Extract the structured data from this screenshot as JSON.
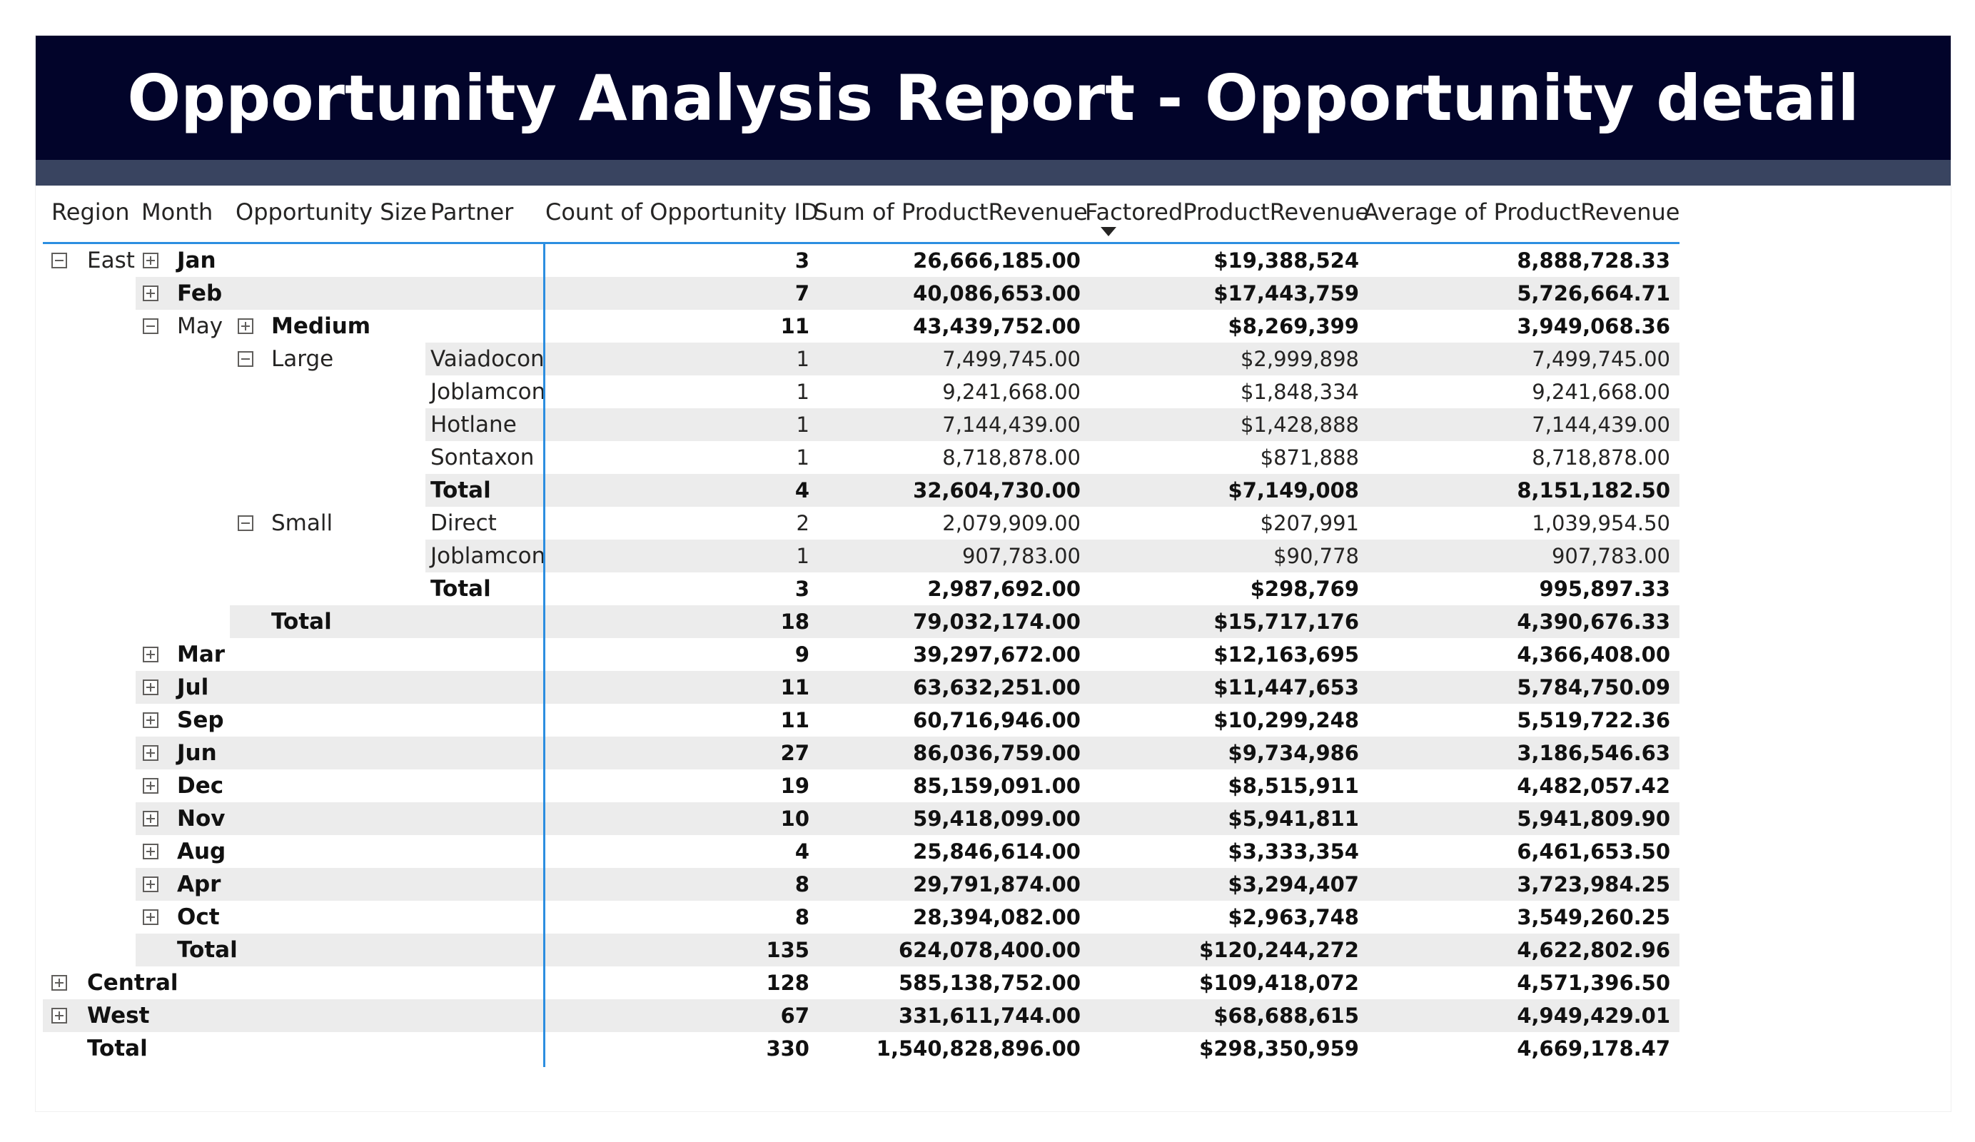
{
  "report": {
    "title": "Opportunity Analysis Report - Opportunity detail"
  },
  "matrix": {
    "columns": {
      "region": "Region",
      "month": "Month",
      "opportunity_size": "Opportunity Size",
      "partner": "Partner",
      "count": "Count of Opportunity ID",
      "sum": "Sum of ProductRevenue",
      "factored": "FactoredProductRevenue",
      "average": "Average of ProductRevenue"
    },
    "sort": {
      "column": "FactoredProductRevenue",
      "direction": "descending"
    },
    "rows": [
      {
        "level": 1,
        "col": "month",
        "pre": {
          "col": "region",
          "text": "East",
          "toggle": "collapse"
        },
        "label": "Jan",
        "toggle": "expand",
        "bold": true,
        "count": "3",
        "sum": "26,666,185.00",
        "factored": "$19,388,524",
        "average": "8,888,728.33"
      },
      {
        "level": 1,
        "col": "month",
        "label": "Feb",
        "toggle": "expand",
        "bold": true,
        "count": "7",
        "sum": "40,086,653.00",
        "factored": "$17,443,759",
        "average": "5,726,664.71"
      },
      {
        "level": 2,
        "col": "size",
        "pre": {
          "col": "month",
          "text": "May",
          "toggle": "collapse"
        },
        "label": "Medium",
        "toggle": "expand",
        "bold": true,
        "count": "11",
        "sum": "43,439,752.00",
        "factored": "$8,269,399",
        "average": "3,949,068.36"
      },
      {
        "level": 3,
        "col": "partner",
        "pre": {
          "col": "size",
          "text": "Large",
          "toggle": "collapse"
        },
        "label": "Vaiadocon",
        "bold": false,
        "count": "1",
        "sum": "7,499,745.00",
        "factored": "$2,999,898",
        "average": "7,499,745.00"
      },
      {
        "level": 3,
        "col": "partner",
        "label": "Joblamcon",
        "bold": false,
        "count": "1",
        "sum": "9,241,668.00",
        "factored": "$1,848,334",
        "average": "9,241,668.00"
      },
      {
        "level": 3,
        "col": "partner",
        "label": "Hotlane",
        "bold": false,
        "count": "1",
        "sum": "7,144,439.00",
        "factored": "$1,428,888",
        "average": "7,144,439.00"
      },
      {
        "level": 3,
        "col": "partner",
        "label": "Sontaxon",
        "bold": false,
        "count": "1",
        "sum": "8,718,878.00",
        "factored": "$871,888",
        "average": "8,718,878.00"
      },
      {
        "level": 3,
        "col": "partner",
        "label": "Total",
        "bold": true,
        "count": "4",
        "sum": "32,604,730.00",
        "factored": "$7,149,008",
        "average": "8,151,182.50"
      },
      {
        "level": 3,
        "col": "partner",
        "pre": {
          "col": "size",
          "text": "Small",
          "toggle": "collapse"
        },
        "label": "Direct",
        "bold": false,
        "count": "2",
        "sum": "2,079,909.00",
        "factored": "$207,991",
        "average": "1,039,954.50"
      },
      {
        "level": 3,
        "col": "partner",
        "label": "Joblamcon",
        "bold": false,
        "count": "1",
        "sum": "907,783.00",
        "factored": "$90,778",
        "average": "907,783.00"
      },
      {
        "level": 3,
        "col": "partner",
        "label": "Total",
        "bold": true,
        "count": "3",
        "sum": "2,987,692.00",
        "factored": "$298,769",
        "average": "995,897.33"
      },
      {
        "level": 2,
        "col": "size",
        "label": "Total",
        "bold": true,
        "count": "18",
        "sum": "79,032,174.00",
        "factored": "$15,717,176",
        "average": "4,390,676.33"
      },
      {
        "level": 1,
        "col": "month",
        "label": "Mar",
        "toggle": "expand",
        "bold": true,
        "count": "9",
        "sum": "39,297,672.00",
        "factored": "$12,163,695",
        "average": "4,366,408.00"
      },
      {
        "level": 1,
        "col": "month",
        "label": "Jul",
        "toggle": "expand",
        "bold": true,
        "count": "11",
        "sum": "63,632,251.00",
        "factored": "$11,447,653",
        "average": "5,784,750.09"
      },
      {
        "level": 1,
        "col": "month",
        "label": "Sep",
        "toggle": "expand",
        "bold": true,
        "count": "11",
        "sum": "60,716,946.00",
        "factored": "$10,299,248",
        "average": "5,519,722.36"
      },
      {
        "level": 1,
        "col": "month",
        "label": "Jun",
        "toggle": "expand",
        "bold": true,
        "count": "27",
        "sum": "86,036,759.00",
        "factored": "$9,734,986",
        "average": "3,186,546.63"
      },
      {
        "level": 1,
        "col": "month",
        "label": "Dec",
        "toggle": "expand",
        "bold": true,
        "count": "19",
        "sum": "85,159,091.00",
        "factored": "$8,515,911",
        "average": "4,482,057.42"
      },
      {
        "level": 1,
        "col": "month",
        "label": "Nov",
        "toggle": "expand",
        "bold": true,
        "count": "10",
        "sum": "59,418,099.00",
        "factored": "$5,941,811",
        "average": "5,941,809.90"
      },
      {
        "level": 1,
        "col": "month",
        "label": "Aug",
        "toggle": "expand",
        "bold": true,
        "count": "4",
        "sum": "25,846,614.00",
        "factored": "$3,333,354",
        "average": "6,461,653.50"
      },
      {
        "level": 1,
        "col": "month",
        "label": "Apr",
        "toggle": "expand",
        "bold": true,
        "count": "8",
        "sum": "29,791,874.00",
        "factored": "$3,294,407",
        "average": "3,723,984.25"
      },
      {
        "level": 1,
        "col": "month",
        "label": "Oct",
        "toggle": "expand",
        "bold": true,
        "count": "8",
        "sum": "28,394,082.00",
        "factored": "$2,963,748",
        "average": "3,549,260.25"
      },
      {
        "level": 1,
        "col": "month",
        "label": "Total",
        "bold": true,
        "count": "135",
        "sum": "624,078,400.00",
        "factored": "$120,244,272",
        "average": "4,622,802.96"
      },
      {
        "level": 0,
        "col": "region",
        "label": "Central",
        "toggle": "expand",
        "bold": true,
        "count": "128",
        "sum": "585,138,752.00",
        "factored": "$109,418,072",
        "average": "4,571,396.50"
      },
      {
        "level": 0,
        "col": "region",
        "label": "West",
        "toggle": "expand",
        "bold": true,
        "count": "67",
        "sum": "331,611,744.00",
        "factored": "$68,688,615",
        "average": "4,949,429.01"
      },
      {
        "level": 0,
        "col": "region",
        "label": "Total",
        "bold": true,
        "count": "330",
        "sum": "1,540,828,896.00",
        "factored": "$298,350,959",
        "average": "4,669,178.47"
      }
    ]
  }
}
